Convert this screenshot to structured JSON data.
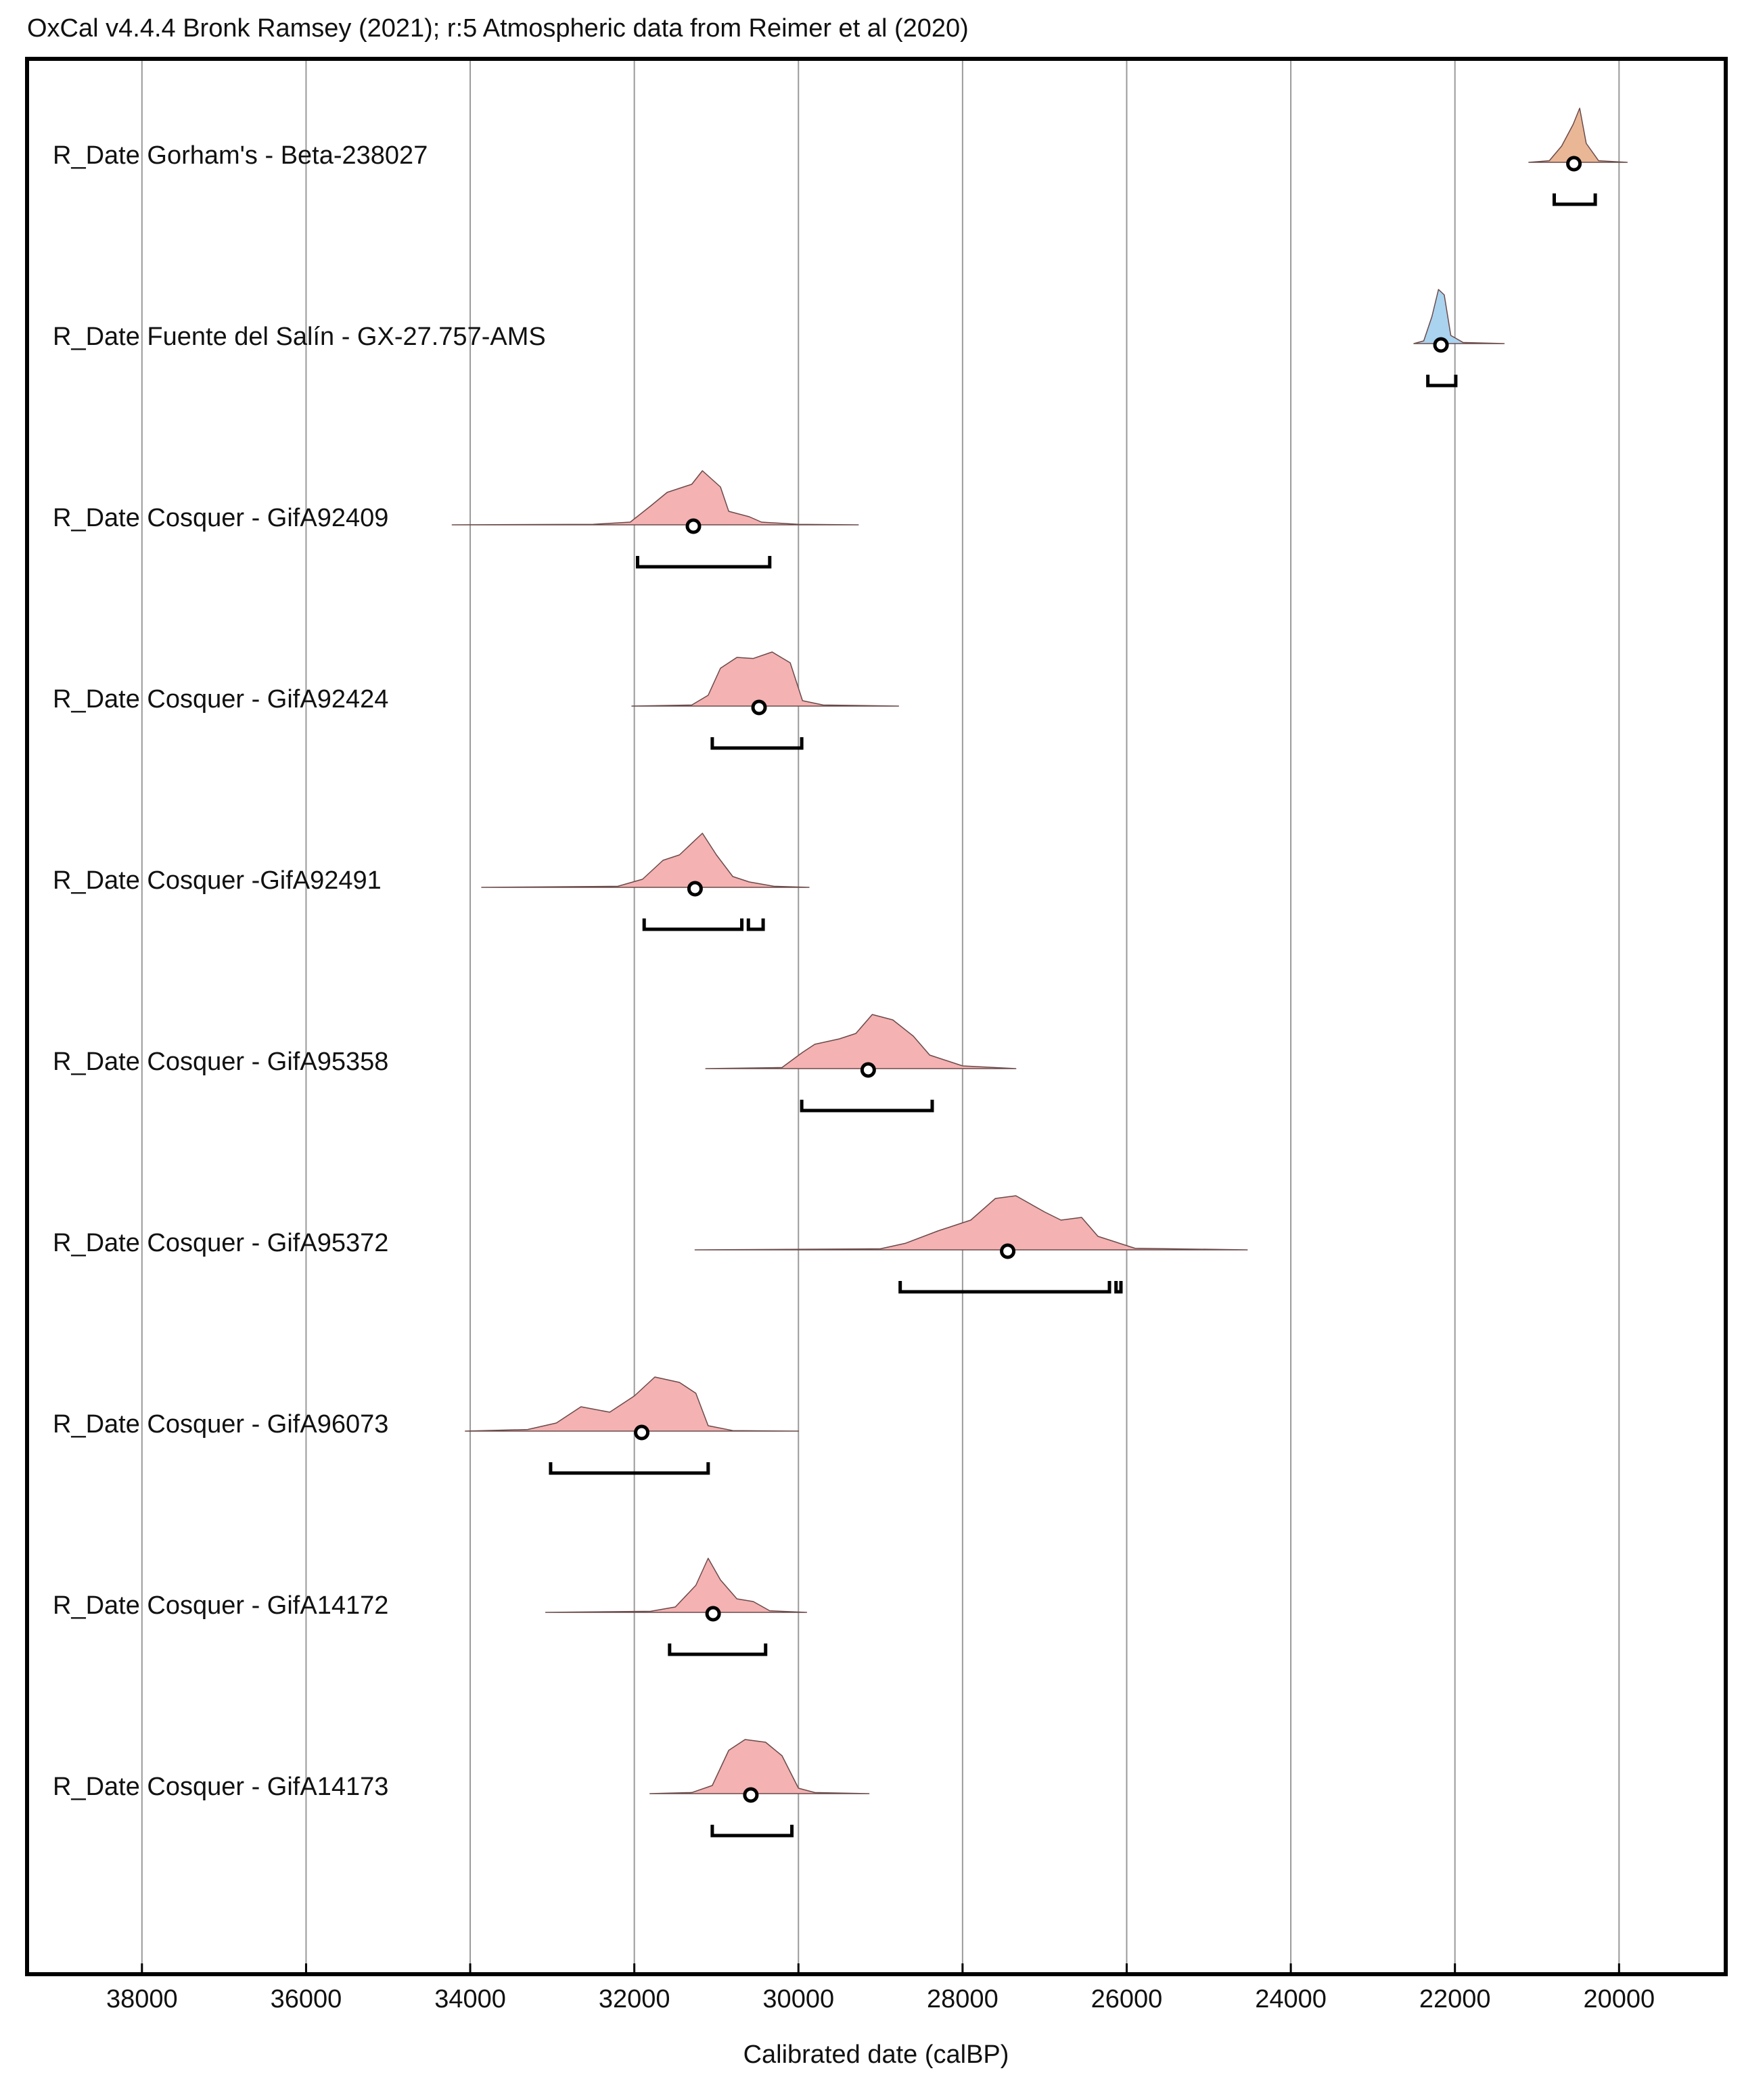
{
  "chart_data": {
    "type": "multiplot",
    "title": "OxCal v4.4.4 Bronk Ramsey (2021); r:5 Atmospheric data from Reimer et al (2020)",
    "xlabel": "Calibrated date (calBP)",
    "xlim": [
      39400,
      18700
    ],
    "xticks": [
      38000,
      36000,
      34000,
      32000,
      30000,
      28000,
      26000,
      24000,
      22000,
      20000
    ],
    "grid": true,
    "series": [
      {
        "name": "R_Date Gorham's - Beta-238027",
        "color": "#e9b796",
        "median": 20550,
        "ranges": [
          [
            20790,
            20290
          ]
        ],
        "profile": {
          "x": [
            21100,
            20850,
            20700,
            20560,
            20480,
            20400,
            20250,
            19900
          ],
          "p": [
            0,
            0.03,
            0.3,
            0.7,
            1.0,
            0.35,
            0.03,
            0
          ]
        }
      },
      {
        "name": "R_Date Fuente del Salín - GX-27.757-AMS",
        "color": "#a9d3ef",
        "median": 22170,
        "ranges": [
          [
            22330,
            21990
          ]
        ],
        "profile": {
          "x": [
            22500,
            22380,
            22280,
            22200,
            22130,
            22050,
            21900,
            21400
          ],
          "p": [
            0,
            0.05,
            0.5,
            1.0,
            0.9,
            0.15,
            0.02,
            0
          ]
        }
      },
      {
        "name": "R_Date Cosquer - GifA92409",
        "color": "#f4b2b2",
        "median": 31280,
        "ranges": [
          [
            31960,
            30350
          ]
        ],
        "profile": {
          "x": [
            34220,
            32500,
            32050,
            31800,
            31600,
            31300,
            31170,
            30950,
            30850,
            30600,
            30450,
            30000,
            29270
          ],
          "p": [
            0,
            0.01,
            0.05,
            0.35,
            0.6,
            0.75,
            1.0,
            0.7,
            0.25,
            0.15,
            0.05,
            0.01,
            0
          ]
        }
      },
      {
        "name": "R_Date Cosquer - GifA92424",
        "color": "#f4b2b2",
        "median": 30480,
        "ranges": [
          [
            31050,
            29960
          ]
        ],
        "profile": {
          "x": [
            32030,
            31300,
            31100,
            30950,
            30750,
            30550,
            30320,
            30100,
            29950,
            29700,
            28780
          ],
          "p": [
            0,
            0.02,
            0.2,
            0.7,
            0.9,
            0.88,
            1.0,
            0.8,
            0.1,
            0.02,
            0
          ]
        }
      },
      {
        "name": "R_Date Cosquer -GifA92491",
        "color": "#f4b2b2",
        "median": 31260,
        "ranges": [
          [
            31880,
            30690
          ],
          [
            30610,
            30430
          ]
        ],
        "profile": {
          "x": [
            33860,
            32200,
            31900,
            31650,
            31450,
            31170,
            31000,
            30800,
            30600,
            30300,
            29870
          ],
          "p": [
            0,
            0.02,
            0.15,
            0.5,
            0.6,
            1.0,
            0.6,
            0.2,
            0.1,
            0.02,
            0
          ]
        }
      },
      {
        "name": "R_Date Cosquer - GifA95358",
        "color": "#f4b2b2",
        "median": 29150,
        "ranges": [
          [
            29960,
            28370
          ]
        ],
        "profile": {
          "x": [
            31130,
            30200,
            29950,
            29800,
            29500,
            29300,
            29100,
            28850,
            28600,
            28400,
            28000,
            27350
          ],
          "p": [
            0,
            0.02,
            0.3,
            0.45,
            0.55,
            0.65,
            1.0,
            0.9,
            0.6,
            0.25,
            0.05,
            0
          ]
        }
      },
      {
        "name": "R_Date Cosquer - GifA95372",
        "color": "#f4b2b2",
        "median": 27450,
        "ranges": [
          [
            28760,
            26210
          ],
          [
            26130,
            26070
          ]
        ],
        "profile": {
          "x": [
            31260,
            29000,
            28700,
            28300,
            27900,
            27600,
            27350,
            27000,
            26800,
            26550,
            26350,
            25900,
            24530
          ],
          "p": [
            0,
            0.02,
            0.12,
            0.35,
            0.55,
            0.95,
            1.0,
            0.7,
            0.55,
            0.6,
            0.25,
            0.03,
            0
          ]
        }
      },
      {
        "name": "R_Date Cosquer - GifA96073",
        "color": "#f4b2b2",
        "median": 31910,
        "ranges": [
          [
            33020,
            31100
          ]
        ],
        "profile": {
          "x": [
            34060,
            33300,
            32950,
            32650,
            32300,
            32000,
            31750,
            31450,
            31250,
            31100,
            30800,
            30000
          ],
          "p": [
            0,
            0.03,
            0.15,
            0.45,
            0.35,
            0.65,
            1.0,
            0.9,
            0.7,
            0.1,
            0.01,
            0
          ]
        }
      },
      {
        "name": "R_Date Cosquer - GifA14172",
        "color": "#f4b2b2",
        "median": 31040,
        "ranges": [
          [
            31570,
            30400
          ]
        ],
        "profile": {
          "x": [
            33080,
            31800,
            31500,
            31250,
            31100,
            30950,
            30750,
            30550,
            30350,
            29900
          ],
          "p": [
            0,
            0.02,
            0.1,
            0.5,
            1.0,
            0.6,
            0.25,
            0.2,
            0.03,
            0
          ]
        }
      },
      {
        "name": "R_Date Cosquer - GifA14173",
        "color": "#f4b2b2",
        "median": 30580,
        "ranges": [
          [
            31050,
            30080
          ]
        ],
        "profile": {
          "x": [
            31810,
            31300,
            31050,
            30850,
            30650,
            30400,
            30200,
            30000,
            29800,
            29140
          ],
          "p": [
            0,
            0.02,
            0.15,
            0.8,
            1.0,
            0.95,
            0.7,
            0.1,
            0.02,
            0
          ]
        }
      }
    ]
  }
}
